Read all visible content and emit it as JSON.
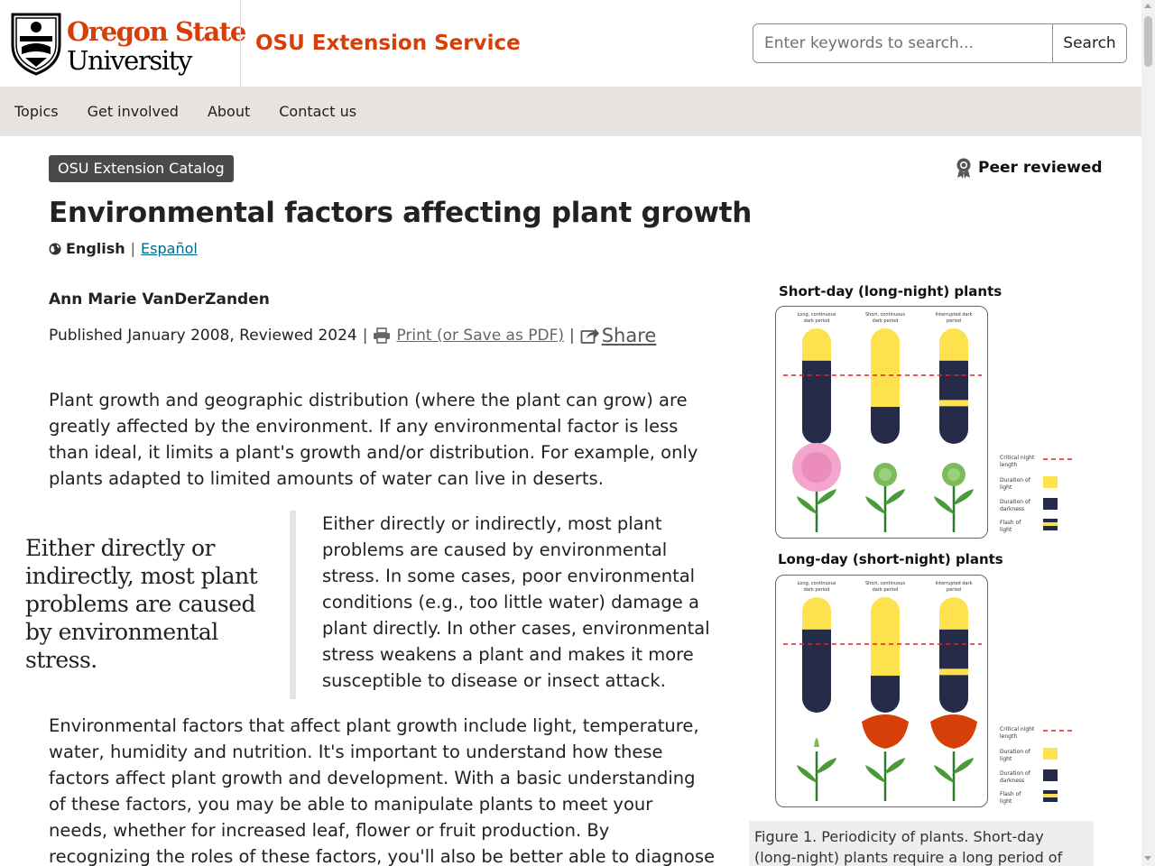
{
  "header": {
    "logo_line1": "Oregon State",
    "logo_line2": "University",
    "site_name": "OSU Extension Service",
    "search_placeholder": "Enter keywords to search...",
    "search_button": "Search"
  },
  "nav": {
    "items": [
      {
        "label": "Topics"
      },
      {
        "label": "Get involved"
      },
      {
        "label": "About"
      },
      {
        "label": "Contact us"
      }
    ]
  },
  "article": {
    "badge": "OSU Extension Catalog",
    "peer_reviewed": "Peer reviewed",
    "title": "Environmental factors affecting plant growth",
    "lang_current": "English",
    "lang_separator": "|",
    "lang_alt": "Español",
    "author": "Ann Marie VanDerZanden",
    "published": "Published January 2008, Reviewed 2024",
    "separator": "|",
    "print_link": "Print (or Save as PDF)",
    "share_link": "Share",
    "para1": "Plant growth and geographic distribution (where the plant can grow) are greatly affected by the environment. If any environmental factor is less than ideal, it limits a plant's growth and/or distribution. For example, only plants adapted to limited amounts of water can live in deserts.",
    "pullquote": "Either directly or indirectly, most plant problems are caused by environmental stress.",
    "para2": "Either directly or indirectly, most plant problems are caused by environmental stress. In some cases, poor environmental conditions (e.g., too little water) damage a plant directly. In other cases, environmental stress weakens a plant and makes it more susceptible to disease or insect attack.",
    "para3": "Environmental factors that affect plant growth include light, temperature, water, humidity and nutrition. It's important to understand how these factors affect plant growth and development. With a basic understanding of these factors, you may be able to manipulate plants to meet your needs, whether for increased leaf, flower or fruit production. By recognizing the roles of these factors, you'll also be better able to diagnose plant problems"
  },
  "figure": {
    "heading_short": "Short-day (long-night) plants",
    "heading_long": "Long-day (short-night) plants",
    "column_labels": [
      "Long, continuous dark period",
      "Short, continuous dark period",
      "Interrupted dark period"
    ],
    "legend": [
      "Critical night length",
      "Duration of light",
      "Duration of darkness",
      "Flash of light"
    ],
    "caption": "Figure 1. Periodicity of plants. Short-day (long-night) plants require a long period of",
    "colors": {
      "light": "#fde14d",
      "dark": "#252b48",
      "critical": "#e0242a",
      "brand": "#d73f09"
    }
  }
}
